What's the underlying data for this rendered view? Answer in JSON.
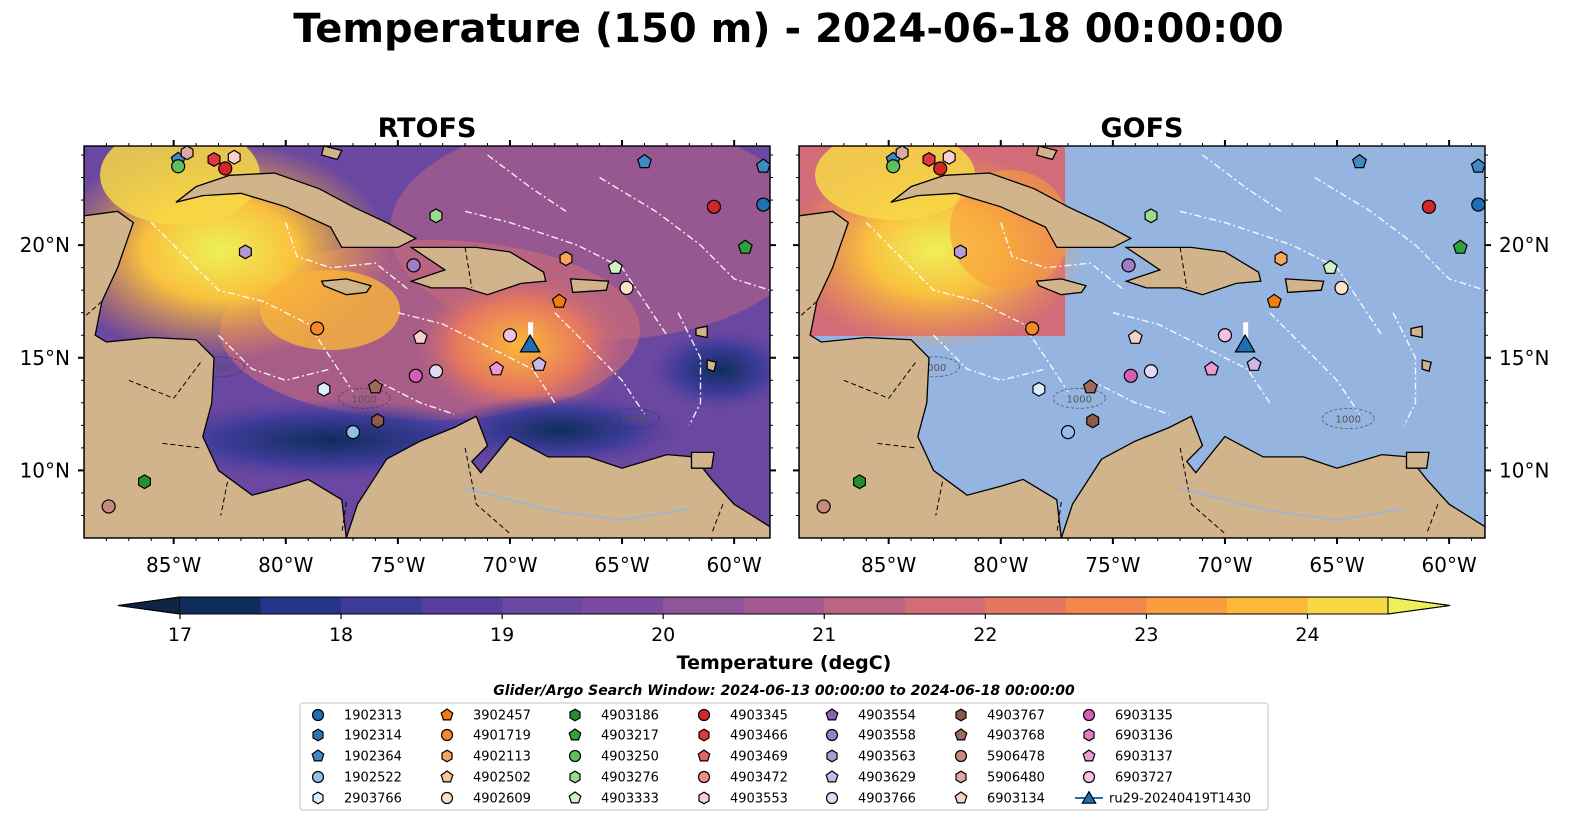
{
  "title": "Temperature (150 m) - 2024-06-18 00:00:00",
  "panels": [
    {
      "title": "RTOFS",
      "color_field": "full"
    },
    {
      "title": "GOFS",
      "color_field": "partial"
    }
  ],
  "map": {
    "lon_range": [
      -89,
      -58.4
    ],
    "lat_range": [
      7,
      24.4
    ],
    "lon_ticks": [
      "85°W",
      "80°W",
      "75°W",
      "70°W",
      "65°W",
      "60°W"
    ],
    "lat_ticks": [
      "20°N",
      "15°N",
      "10°N"
    ],
    "ocean_color": "#95b4e0",
    "land_color": "#d2b48c",
    "contour_labels": [
      "1000",
      "1000",
      "1000"
    ]
  },
  "colorbar": {
    "label": "Temperature (degC)",
    "ticks": [
      "17",
      "18",
      "19",
      "20",
      "21",
      "22",
      "23",
      "24"
    ],
    "colors": [
      "#0d2540",
      "#0f2d5c",
      "#26358a",
      "#3e3c9a",
      "#563f9e",
      "#6a47a0",
      "#7c4b9f",
      "#90549b",
      "#a45a90",
      "#bb6484",
      "#d16c78",
      "#e5765f",
      "#f2884c",
      "#f99d3f",
      "#fbb83a",
      "#f7d846",
      "#eef05a"
    ]
  },
  "legend": {
    "title": "Glider/Argo Search Window: 2024-06-13 00:00:00 to 2024-06-18 00:00:00",
    "columns": [
      [
        {
          "label": "1902313",
          "marker": "circle",
          "color": "#1f6fb4"
        },
        {
          "label": "1902314",
          "marker": "hexagon",
          "color": "#2b78b8"
        },
        {
          "label": "1902364",
          "marker": "pentagon",
          "color": "#3f8ac6"
        },
        {
          "label": "1902522",
          "marker": "circle",
          "color": "#8fc0e8"
        },
        {
          "label": "2903766",
          "marker": "hexagon",
          "color": "#dceefb"
        }
      ],
      [
        {
          "label": "3902457",
          "marker": "pentagon",
          "color": "#f07f0e"
        },
        {
          "label": "4901719",
          "marker": "circle",
          "color": "#f5892a"
        },
        {
          "label": "4902113",
          "marker": "hexagon",
          "color": "#f7a55a"
        },
        {
          "label": "4902502",
          "marker": "pentagon",
          "color": "#fac58e"
        },
        {
          "label": "4902609",
          "marker": "circle",
          "color": "#fde3c6"
        }
      ],
      [
        {
          "label": "4903186",
          "marker": "hexagon",
          "color": "#23902d"
        },
        {
          "label": "4903217",
          "marker": "pentagon",
          "color": "#2fa23a"
        },
        {
          "label": "4903250",
          "marker": "circle",
          "color": "#5fbf5f"
        },
        {
          "label": "4903276",
          "marker": "hexagon",
          "color": "#98dc8f"
        },
        {
          "label": "4903333",
          "marker": "pentagon",
          "color": "#d0f3c6"
        }
      ],
      [
        {
          "label": "4903345",
          "marker": "circle",
          "color": "#d3262b"
        },
        {
          "label": "4903466",
          "marker": "hexagon",
          "color": "#dc3a3e"
        },
        {
          "label": "4903469",
          "marker": "pentagon",
          "color": "#e46464"
        },
        {
          "label": "4903472",
          "marker": "circle",
          "color": "#f08e8a"
        },
        {
          "label": "4903553",
          "marker": "hexagon",
          "color": "#fbd0cc"
        }
      ],
      [
        {
          "label": "4903554",
          "marker": "pentagon",
          "color": "#8b62b8"
        },
        {
          "label": "4903558",
          "marker": "circle",
          "color": "#9f7cc8"
        },
        {
          "label": "4903563",
          "marker": "hexagon",
          "color": "#b39ad6"
        },
        {
          "label": "4903629",
          "marker": "pentagon",
          "color": "#cab8e6"
        },
        {
          "label": "4903766",
          "marker": "circle",
          "color": "#e5daf5"
        }
      ],
      [
        {
          "label": "4903767",
          "marker": "hexagon",
          "color": "#8c5a4a"
        },
        {
          "label": "4903768",
          "marker": "pentagon",
          "color": "#9e6b5b"
        },
        {
          "label": "5906478",
          "marker": "circle",
          "color": "#c48a7e"
        },
        {
          "label": "5906480",
          "marker": "hexagon",
          "color": "#dcaaa0"
        },
        {
          "label": "6903134",
          "marker": "pentagon",
          "color": "#f5d3c8"
        }
      ],
      [
        {
          "label": "6903135",
          "marker": "circle",
          "color": "#d65fb6"
        },
        {
          "label": "6903136",
          "marker": "hexagon",
          "color": "#e27cc4"
        },
        {
          "label": "6903137",
          "marker": "pentagon",
          "color": "#eb9dd2"
        },
        {
          "label": "6903727",
          "marker": "circle",
          "color": "#f4c0e3"
        },
        {
          "label": "ru29-20240419T1430",
          "marker": "triangle",
          "color": "#1f6fb4"
        }
      ]
    ]
  },
  "floats": [
    {
      "id": "1902364",
      "lon": -84.8,
      "lat": 23.8
    },
    {
      "id": "5906480",
      "lon": -84.4,
      "lat": 24.1
    },
    {
      "id": "4903466",
      "lon": -83.2,
      "lat": 23.8
    },
    {
      "id": "4903553",
      "lon": -82.3,
      "lat": 23.9
    },
    {
      "id": "4903345",
      "lon": -82.7,
      "lat": 23.4
    },
    {
      "id": "4903250",
      "lon": -84.8,
      "lat": 23.5
    },
    {
      "id": "4903276",
      "lon": -73.3,
      "lat": 21.3
    },
    {
      "id": "1902364",
      "lon": -64,
      "lat": 23.7
    },
    {
      "id": "1902364",
      "lon": -58.7,
      "lat": 23.5
    },
    {
      "id": "4903345",
      "lon": -60.9,
      "lat": 21.7
    },
    {
      "id": "1902313",
      "lon": -58.7,
      "lat": 21.8
    },
    {
      "id": "4903217",
      "lon": -59.5,
      "lat": 19.9
    },
    {
      "id": "4903563",
      "lon": -81.8,
      "lat": 19.7
    },
    {
      "id": "4903558",
      "lon": -74.3,
      "lat": 19.1
    },
    {
      "id": "4902113",
      "lon": -67.5,
      "lat": 19.4
    },
    {
      "id": "4903333",
      "lon": -65.3,
      "lat": 19
    },
    {
      "id": "4902609",
      "lon": -64.8,
      "lat": 18.1
    },
    {
      "id": "3902457",
      "lon": -67.8,
      "lat": 17.5
    },
    {
      "id": "4901719",
      "lon": -78.6,
      "lat": 16.3
    },
    {
      "id": "6903134",
      "lon": -74,
      "lat": 15.9
    },
    {
      "id": "6903727",
      "lon": -70,
      "lat": 16
    },
    {
      "id": "6903137",
      "lon": -70.6,
      "lat": 14.5
    },
    {
      "id": "4903629",
      "lon": -68.7,
      "lat": 14.7
    },
    {
      "id": "6903135",
      "lon": -74.2,
      "lat": 14.2
    },
    {
      "id": "4903766",
      "lon": -73.3,
      "lat": 14.4
    },
    {
      "id": "2903766",
      "lon": -78.3,
      "lat": 13.6
    },
    {
      "id": "4903768",
      "lon": -76,
      "lat": 13.7
    },
    {
      "id": "4903767",
      "lon": -75.9,
      "lat": 12.2
    },
    {
      "id": "1902522",
      "lon": -77,
      "lat": 11.7
    },
    {
      "id": "4903186",
      "lon": -86.3,
      "lat": 9.5
    },
    {
      "id": "5906478",
      "lon": -87.9,
      "lat": 8.4
    }
  ],
  "glider": {
    "id": "ru29-20240419T1430",
    "lon": -69.1,
    "lat": 15.6
  }
}
